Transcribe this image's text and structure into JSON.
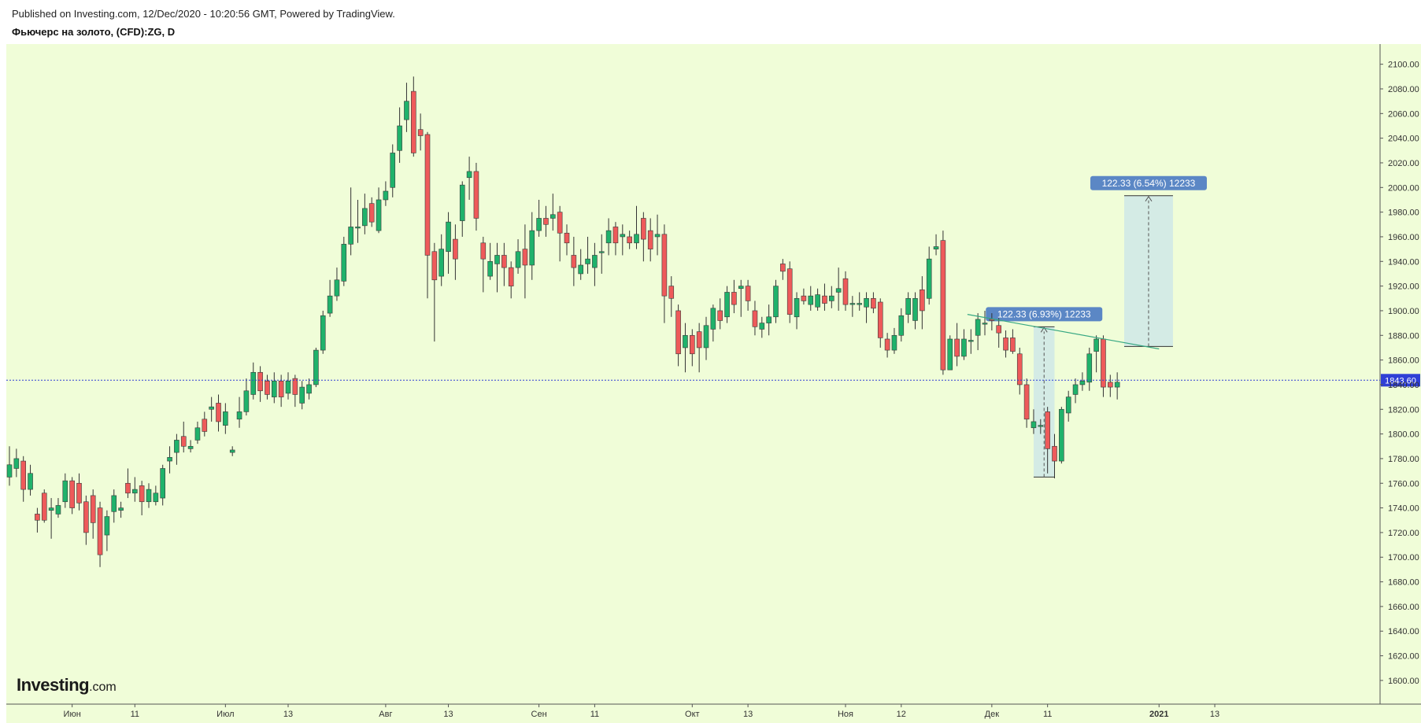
{
  "header": {
    "published": "Published on Investing.com, 12/Dec/2020 - 10:20:56 GMT, Powered by TradingView.",
    "symbol": "Фьючерс на золото, (CFD):ZG, D"
  },
  "logo": {
    "brand": "Investing",
    "suffix": ".com"
  },
  "colors": {
    "background": "#f0fdd8",
    "up": "#1fb26b",
    "down": "#ee5a5a",
    "wick": "#333333",
    "trend": "#37a883",
    "measure_fill": "#cfe8e8",
    "label_bg": "#5b87c5",
    "price_line": "#2f3fd6"
  },
  "chart_data": {
    "type": "candlestick",
    "title": "Фьючерс на золото, (CFD):ZG, D",
    "ylim": [
      1580,
      2110
    ],
    "y_ticks": [
      "1600.00",
      "1620.00",
      "1640.00",
      "1660.00",
      "1680.00",
      "1700.00",
      "1720.00",
      "1740.00",
      "1760.00",
      "1780.00",
      "1800.00",
      "1820.00",
      "1840.00",
      "1860.00",
      "1880.00",
      "1900.00",
      "1920.00",
      "1940.00",
      "1960.00",
      "1980.00",
      "2000.00",
      "2020.00",
      "2040.00",
      "2060.00",
      "2080.00",
      "2100.00"
    ],
    "x_ticks": [
      {
        "label": "Июн",
        "index": 9
      },
      {
        "label": "11",
        "index": 18
      },
      {
        "label": "Июл",
        "index": 31
      },
      {
        "label": "13",
        "index": 40
      },
      {
        "label": "Авг",
        "index": 54
      },
      {
        "label": "13",
        "index": 63
      },
      {
        "label": "Сен",
        "index": 76
      },
      {
        "label": "11",
        "index": 84
      },
      {
        "label": "Окт",
        "index": 98
      },
      {
        "label": "13",
        "index": 106
      },
      {
        "label": "Ноя",
        "index": 120
      },
      {
        "label": "12",
        "index": 128
      },
      {
        "label": "Дек",
        "index": 141
      },
      {
        "label": "11",
        "index": 149
      },
      {
        "label": "2021",
        "index": 165
      },
      {
        "label": "13",
        "index": 173
      }
    ],
    "candles": [
      [
        1765,
        1775,
        1790,
        1758
      ],
      [
        1772,
        1780,
        1788,
        1765
      ],
      [
        1778,
        1755,
        1782,
        1745
      ],
      [
        1755,
        1768,
        1775,
        1750
      ],
      [
        1735,
        1730,
        1740,
        1720
      ],
      [
        1752,
        1730,
        1755,
        1728
      ],
      [
        1738,
        1740,
        1748,
        1715
      ],
      [
        1735,
        1742,
        1748,
        1732
      ],
      [
        1745,
        1762,
        1768,
        1740
      ],
      [
        1762,
        1740,
        1765,
        1735
      ],
      [
        1760,
        1744,
        1768,
        1738
      ],
      [
        1745,
        1720,
        1750,
        1710
      ],
      [
        1750,
        1728,
        1755,
        1715
      ],
      [
        1740,
        1702,
        1745,
        1692
      ],
      [
        1718,
        1733,
        1738,
        1705
      ],
      [
        1737,
        1750,
        1755,
        1728
      ],
      [
        1738,
        1740,
        1745,
        1732
      ],
      [
        1760,
        1752,
        1772,
        1748
      ],
      [
        1752,
        1755,
        1765,
        1745
      ],
      [
        1758,
        1745,
        1762,
        1734
      ],
      [
        1745,
        1755,
        1760,
        1740
      ],
      [
        1745,
        1752,
        1758,
        1742
      ],
      [
        1748,
        1772,
        1775,
        1742
      ],
      [
        1778,
        1781,
        1790,
        1768
      ],
      [
        1785,
        1795,
        1800,
        1775
      ],
      [
        1798,
        1790,
        1810,
        1785
      ],
      [
        1788,
        1790,
        1795,
        1785
      ],
      [
        1795,
        1805,
        1810,
        1792
      ],
      [
        1812,
        1802,
        1818,
        1798
      ],
      [
        1820,
        1822,
        1830,
        1810
      ],
      [
        1825,
        1810,
        1832,
        1802
      ],
      [
        1807,
        1818,
        1825,
        1800
      ],
      [
        1785,
        1787,
        1790,
        1782
      ],
      [
        1812,
        1818,
        1830,
        1805
      ],
      [
        1818,
        1835,
        1845,
        1815
      ],
      [
        1832,
        1850,
        1858,
        1828
      ],
      [
        1850,
        1835,
        1855,
        1826
      ],
      [
        1843,
        1832,
        1848,
        1828
      ],
      [
        1830,
        1843,
        1850,
        1825
      ],
      [
        1843,
        1830,
        1848,
        1822
      ],
      [
        1833,
        1843,
        1850,
        1828
      ],
      [
        1845,
        1832,
        1848,
        1822
      ],
      [
        1825,
        1838,
        1843,
        1820
      ],
      [
        1833,
        1840,
        1845,
        1828
      ],
      [
        1840,
        1868,
        1870,
        1838
      ],
      [
        1868,
        1896,
        1900,
        1865
      ],
      [
        1898,
        1912,
        1925,
        1895
      ],
      [
        1912,
        1925,
        1935,
        1908
      ],
      [
        1924,
        1954,
        1960,
        1920
      ],
      [
        1954,
        1968,
        2000,
        1945
      ],
      [
        1968,
        1968,
        1990,
        1955
      ],
      [
        1969,
        1983,
        1995,
        1962
      ],
      [
        1987,
        1972,
        1992,
        1968
      ],
      [
        1965,
        1990,
        2000,
        1963
      ],
      [
        1990,
        1997,
        2005,
        1985
      ],
      [
        2000,
        2028,
        2035,
        1992
      ],
      [
        2030,
        2050,
        2065,
        2020
      ],
      [
        2055,
        2070,
        2085,
        2045
      ],
      [
        2078,
        2028,
        2090,
        2025
      ],
      [
        2047,
        2042,
        2060,
        2030
      ],
      [
        2043,
        1945,
        2045,
        1910
      ],
      [
        1948,
        1925,
        1955,
        1875
      ],
      [
        1928,
        1950,
        1962,
        1920
      ],
      [
        1948,
        1972,
        1980,
        1930
      ],
      [
        1958,
        1942,
        1970,
        1925
      ],
      [
        1973,
        2002,
        2005,
        1960
      ],
      [
        2008,
        2013,
        2025,
        1990
      ],
      [
        2013,
        1975,
        2020,
        1965
      ],
      [
        1955,
        1942,
        1960,
        1915
      ],
      [
        1928,
        1940,
        1955,
        1925
      ],
      [
        1938,
        1945,
        1955,
        1915
      ],
      [
        1945,
        1935,
        1955,
        1920
      ],
      [
        1935,
        1920,
        1940,
        1910
      ],
      [
        1935,
        1948,
        1958,
        1930
      ],
      [
        1950,
        1937,
        1970,
        1910
      ],
      [
        1937,
        1965,
        1980,
        1925
      ],
      [
        1965,
        1975,
        1990,
        1960
      ],
      [
        1975,
        1970,
        1985,
        1960
      ],
      [
        1975,
        1978,
        1995,
        1965
      ],
      [
        1980,
        1963,
        1985,
        1940
      ],
      [
        1963,
        1955,
        1970,
        1945
      ],
      [
        1945,
        1935,
        1960,
        1920
      ],
      [
        1930,
        1937,
        1950,
        1925
      ],
      [
        1938,
        1942,
        1960,
        1930
      ],
      [
        1935,
        1945,
        1955,
        1920
      ],
      [
        1947,
        1948,
        1962,
        1930
      ],
      [
        1955,
        1965,
        1975,
        1945
      ],
      [
        1968,
        1955,
        1972,
        1945
      ],
      [
        1960,
        1962,
        1970,
        1945
      ],
      [
        1960,
        1955,
        1965,
        1950
      ],
      [
        1955,
        1962,
        1985,
        1950
      ],
      [
        1975,
        1958,
        1980,
        1940
      ],
      [
        1965,
        1950,
        1975,
        1940
      ],
      [
        1960,
        1962,
        1978,
        1945
      ],
      [
        1962,
        1912,
        1970,
        1890
      ],
      [
        1920,
        1910,
        1928,
        1895
      ],
      [
        1900,
        1865,
        1905,
        1855
      ],
      [
        1870,
        1880,
        1890,
        1850
      ],
      [
        1880,
        1865,
        1885,
        1855
      ],
      [
        1883,
        1870,
        1890,
        1850
      ],
      [
        1870,
        1888,
        1895,
        1860
      ],
      [
        1885,
        1902,
        1905,
        1875
      ],
      [
        1900,
        1892,
        1910,
        1885
      ],
      [
        1895,
        1915,
        1920,
        1890
      ],
      [
        1915,
        1905,
        1925,
        1898
      ],
      [
        1918,
        1920,
        1925,
        1895
      ],
      [
        1920,
        1908,
        1925,
        1900
      ],
      [
        1900,
        1887,
        1908,
        1880
      ],
      [
        1885,
        1890,
        1895,
        1878
      ],
      [
        1890,
        1895,
        1905,
        1880
      ],
      [
        1895,
        1920,
        1925,
        1890
      ],
      [
        1938,
        1932,
        1942,
        1925
      ],
      [
        1934,
        1897,
        1940,
        1890
      ],
      [
        1895,
        1910,
        1915,
        1885
      ],
      [
        1912,
        1908,
        1918,
        1905
      ],
      [
        1905,
        1912,
        1920,
        1900
      ],
      [
        1903,
        1913,
        1918,
        1900
      ],
      [
        1912,
        1906,
        1922,
        1900
      ],
      [
        1908,
        1912,
        1920,
        1902
      ],
      [
        1915,
        1918,
        1935,
        1900
      ],
      [
        1926,
        1905,
        1932,
        1900
      ],
      [
        1906,
        1906,
        1912,
        1895
      ],
      [
        1905,
        1906,
        1915,
        1900
      ],
      [
        1903,
        1910,
        1915,
        1890
      ],
      [
        1910,
        1902,
        1915,
        1898
      ],
      [
        1907,
        1878,
        1910,
        1870
      ],
      [
        1877,
        1868,
        1882,
        1862
      ],
      [
        1868,
        1880,
        1886,
        1865
      ],
      [
        1880,
        1896,
        1902,
        1875
      ],
      [
        1897,
        1910,
        1915,
        1890
      ],
      [
        1892,
        1910,
        1915,
        1885
      ],
      [
        1917,
        1900,
        1928,
        1885
      ],
      [
        1910,
        1942,
        1952,
        1905
      ],
      [
        1950,
        1952,
        1962,
        1945
      ],
      [
        1957,
        1852,
        1965,
        1848
      ],
      [
        1852,
        1877,
        1880,
        1858
      ],
      [
        1877,
        1863,
        1890,
        1855
      ],
      [
        1863,
        1877,
        1885,
        1860
      ],
      [
        1876,
        1876,
        1885,
        1865
      ],
      [
        1880,
        1893,
        1898,
        1868
      ],
      [
        1890,
        1890,
        1900,
        1880
      ],
      [
        1893,
        1892,
        1898,
        1884
      ],
      [
        1888,
        1882,
        1894,
        1870
      ],
      [
        1878,
        1868,
        1884,
        1862
      ],
      [
        1878,
        1867,
        1885,
        1865
      ],
      [
        1865,
        1840,
        1870,
        1832
      ],
      [
        1840,
        1812,
        1845,
        1805
      ],
      [
        1805,
        1810,
        1820,
        1800
      ],
      [
        1807,
        1807,
        1812,
        1800
      ],
      [
        1818,
        1788,
        1822,
        1768
      ],
      [
        1790,
        1778,
        1800,
        1764
      ],
      [
        1778,
        1820,
        1822,
        1776
      ],
      [
        1817,
        1830,
        1835,
        1810
      ],
      [
        1832,
        1840,
        1845,
        1825
      ],
      [
        1840,
        1843,
        1850,
        1835
      ],
      [
        1842,
        1865,
        1870,
        1835
      ],
      [
        1867,
        1877,
        1880,
        1850
      ],
      [
        1877,
        1838,
        1880,
        1830
      ],
      [
        1842,
        1838,
        1848,
        1830
      ],
      [
        1838,
        1842,
        1850,
        1828
      ]
    ],
    "current_price": 1843.6,
    "current_price_label": "1843.60",
    "trend_line": {
      "from": [
        137.5,
        1897
      ],
      "to": [
        165,
        1869
      ]
    },
    "measurements": [
      {
        "label": "122.33 (6.93%) 12233",
        "x1": 147,
        "x2": 150,
        "y_top": 1887,
        "y_bottom": 1765
      },
      {
        "label": "122.33 (6.54%) 12233",
        "x1": 160,
        "x2": 167,
        "y_top": 1993.3,
        "y_bottom": 1871
      }
    ]
  }
}
